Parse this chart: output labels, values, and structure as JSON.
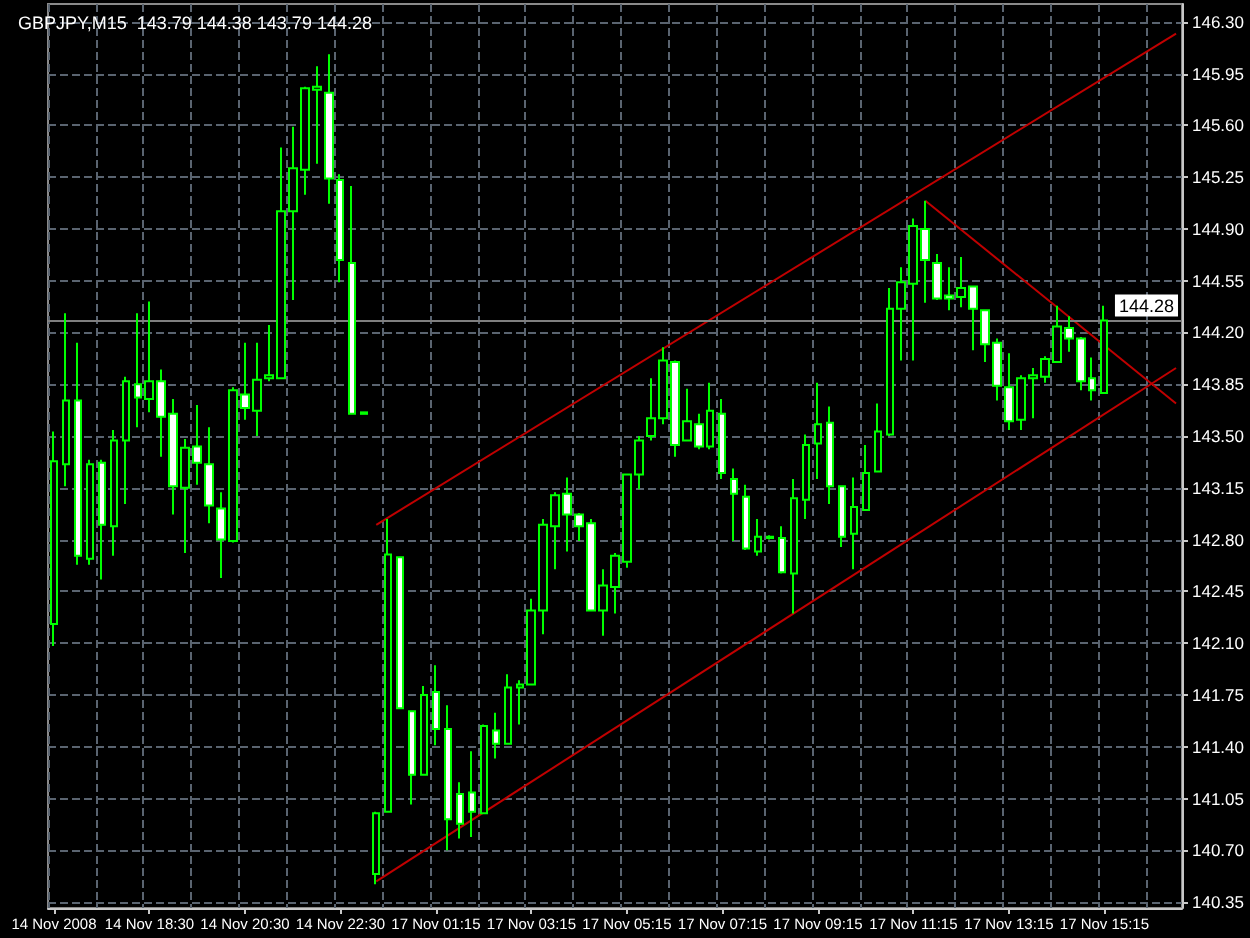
{
  "chart_data": {
    "type": "candlestick",
    "title": "GBPJPY,M15  143.79 144.38 143.79 144.28",
    "categories": [
      "14 Nov 2008",
      null,
      null,
      null,
      null,
      null,
      null,
      null,
      "14 Nov 18:30",
      null,
      null,
      null,
      null,
      null,
      null,
      null,
      "14 Nov 20:30",
      null,
      null,
      null,
      null,
      null,
      null,
      null,
      "14 Nov 22:30",
      null,
      null,
      null,
      null,
      null,
      null,
      null,
      "17 Nov 01:15",
      null,
      null,
      null,
      null,
      null,
      null,
      null,
      "17 Nov 03:15",
      null,
      null,
      null,
      null,
      null,
      null,
      null,
      "17 Nov 05:15",
      null,
      null,
      null,
      null,
      null,
      null,
      null,
      "17 Nov 07:15",
      null,
      null,
      null,
      null,
      null,
      null,
      null,
      "17 Nov 09:15",
      null,
      null,
      null,
      null,
      null,
      null,
      null,
      "17 Nov 11:15",
      null,
      null,
      null,
      null,
      null,
      null,
      null,
      "17 Nov 13:15",
      null,
      null,
      null,
      null,
      null,
      null,
      null,
      "17 Nov 15:15",
      null,
      null,
      null,
      null,
      null,
      null
    ],
    "ylim": [
      140.31,
      146.42
    ],
    "yticks": [
      {
        "value": 140.35,
        "label": "140.35"
      },
      {
        "value": 140.7,
        "label": "140.70"
      },
      {
        "value": 141.05,
        "label": "141.05"
      },
      {
        "value": 141.4,
        "label": "141.40"
      },
      {
        "value": 141.75,
        "label": "141.75"
      },
      {
        "value": 142.1,
        "label": "142.10"
      },
      {
        "value": 142.45,
        "label": "142.45"
      },
      {
        "value": 142.8,
        "label": "142.80"
      },
      {
        "value": 143.15,
        "label": "143.15"
      },
      {
        "value": 143.5,
        "label": "143.50"
      },
      {
        "value": 143.85,
        "label": "143.85"
      },
      {
        "value": 144.2,
        "label": "144.20"
      },
      {
        "value": 144.55,
        "label": "144.55"
      },
      {
        "value": 144.9,
        "label": "144.90"
      },
      {
        "value": 145.25,
        "label": "145.25"
      },
      {
        "value": 145.6,
        "label": "145.60"
      },
      {
        "value": 145.95,
        "label": "145.95"
      },
      {
        "value": 146.3,
        "label": "146.30"
      }
    ],
    "grid": true,
    "ref_lines": [
      {
        "axis": "y",
        "value": 144.28,
        "label": "144.28",
        "color": "#7f7f7f"
      }
    ],
    "color": "#00ff00",
    "colors": [
      "#000000",
      "#000000",
      "#ffffff",
      "#000000",
      "#ffffff",
      "#000000",
      "#000000",
      "#ffffff",
      "#000000",
      "#ffffff",
      "#ffffff",
      "#000000",
      "#ffffff",
      "#ffffff",
      "#ffffff",
      "#000000",
      "#ffffff",
      "#000000",
      "#000000",
      "#000000",
      "#000000",
      "#000000",
      "#000000",
      "#ffffff",
      "#ffffff",
      "#ffffff",
      "#ffffff",
      "#000000",
      "#000000",
      "#ffffff",
      "#ffffff",
      "#000000",
      "#ffffff",
      "#ffffff",
      "#ffffff",
      "#ffffff",
      "#000000",
      "#ffffff",
      "#000000",
      "#000000",
      "#000000",
      "#000000",
      "#000000",
      "#ffffff",
      "#ffffff",
      "#ffffff",
      "#000000",
      "#000000",
      "#000000",
      "#000000",
      "#000000",
      "#000000",
      "#ffffff",
      "#000000",
      "#ffffff",
      "#000000",
      "#ffffff",
      "#ffffff",
      "#ffffff",
      "#000000",
      "#000000",
      "#ffffff",
      "#000000",
      "#000000",
      "#000000",
      "#ffffff",
      "#ffffff",
      "#000000",
      "#000000",
      "#000000",
      "#000000",
      "#000000",
      "#000000",
      "#ffffff",
      "#ffffff",
      "#ffffff",
      "#000000",
      "#ffffff",
      "#ffffff",
      "#ffffff",
      "#ffffff",
      "#000000",
      "#000000",
      "#000000",
      "#000000",
      "#ffffff",
      "#ffffff",
      "#ffffff",
      "#000000",
      null,
      null,
      null,
      null,
      null,
      null
    ],
    "ohlc": [
      [
        142.23,
        143.53,
        142.08,
        143.33
      ],
      [
        143.31,
        144.33,
        143.16,
        143.74
      ],
      [
        143.74,
        144.13,
        142.63,
        142.69
      ],
      [
        142.67,
        143.34,
        142.63,
        143.31
      ],
      [
        143.32,
        143.34,
        142.53,
        142.9
      ],
      [
        142.89,
        143.54,
        142.69,
        143.47
      ],
      [
        143.47,
        143.9,
        143.04,
        143.87
      ],
      [
        143.85,
        144.33,
        143.56,
        143.76
      ],
      [
        143.75,
        144.41,
        143.66,
        143.87
      ],
      [
        143.87,
        143.95,
        143.36,
        143.63
      ],
      [
        143.65,
        143.75,
        142.97,
        143.16
      ],
      [
        143.15,
        143.48,
        142.71,
        143.42
      ],
      [
        143.43,
        143.71,
        143.17,
        143.32
      ],
      [
        143.31,
        143.56,
        142.91,
        143.03
      ],
      [
        143.01,
        143.12,
        142.54,
        142.8
      ],
      [
        142.79,
        143.83,
        142.78,
        143.81
      ],
      [
        143.78,
        144.13,
        143.61,
        143.69
      ],
      [
        143.67,
        144.13,
        143.5,
        143.88
      ],
      [
        143.89,
        144.25,
        143.87,
        143.91
      ],
      [
        143.89,
        145.45,
        143.89,
        145.02
      ],
      [
        145.02,
        145.59,
        144.42,
        145.31
      ],
      [
        145.3,
        145.86,
        145.13,
        145.85
      ],
      [
        145.84,
        146.0,
        145.34,
        145.86
      ],
      [
        145.82,
        146.08,
        145.07,
        145.24
      ],
      [
        145.23,
        145.27,
        144.54,
        144.69
      ],
      [
        144.67,
        145.19,
        143.65,
        143.65
      ],
      [
        143.66,
        143.66,
        143.65,
        143.65
      ],
      [
        140.54,
        140.96,
        140.47,
        140.95
      ],
      [
        140.96,
        142.94,
        140.96,
        142.7
      ],
      [
        142.68,
        142.68,
        141.66,
        141.66
      ],
      [
        141.64,
        141.64,
        141.01,
        141.21
      ],
      [
        141.21,
        141.81,
        141.21,
        141.75
      ],
      [
        141.77,
        141.95,
        141.41,
        141.52
      ],
      [
        141.52,
        141.68,
        140.7,
        140.91
      ],
      [
        141.08,
        141.16,
        140.78,
        140.88
      ],
      [
        141.09,
        141.37,
        140.79,
        140.96
      ],
      [
        140.95,
        141.55,
        140.95,
        141.54
      ],
      [
        141.51,
        141.63,
        141.32,
        141.42
      ],
      [
        141.42,
        141.89,
        141.42,
        141.8
      ],
      [
        141.8,
        141.85,
        141.55,
        141.82
      ],
      [
        141.82,
        142.4,
        141.82,
        142.32
      ],
      [
        142.32,
        142.94,
        142.16,
        142.9
      ],
      [
        142.89,
        143.12,
        142.6,
        143.1
      ],
      [
        143.11,
        143.22,
        142.72,
        142.97
      ],
      [
        142.97,
        142.98,
        142.79,
        142.89
      ],
      [
        142.91,
        142.94,
        142.32,
        142.32
      ],
      [
        142.32,
        142.6,
        142.15,
        142.49
      ],
      [
        142.48,
        142.71,
        142.3,
        142.69
      ],
      [
        142.65,
        143.24,
        142.61,
        143.24
      ],
      [
        143.24,
        143.5,
        143.14,
        143.47
      ],
      [
        143.5,
        143.89,
        143.47,
        143.62
      ],
      [
        143.62,
        144.1,
        143.58,
        144.01
      ],
      [
        144.0,
        144.01,
        143.36,
        143.44
      ],
      [
        143.47,
        143.82,
        143.47,
        143.6
      ],
      [
        143.58,
        143.65,
        143.41,
        143.43
      ],
      [
        143.43,
        143.86,
        143.41,
        143.67
      ],
      [
        143.65,
        143.75,
        143.21,
        143.25
      ],
      [
        143.21,
        143.28,
        142.79,
        143.11
      ],
      [
        143.09,
        143.17,
        142.73,
        142.74
      ],
      [
        142.72,
        142.94,
        142.69,
        142.82
      ],
      [
        142.81,
        142.83,
        142.8,
        142.82
      ],
      [
        142.81,
        142.89,
        142.57,
        142.58
      ],
      [
        142.57,
        143.21,
        142.3,
        143.08
      ],
      [
        143.07,
        143.51,
        142.94,
        143.44
      ],
      [
        143.45,
        143.86,
        143.21,
        143.58
      ],
      [
        143.59,
        143.7,
        143.04,
        143.16
      ],
      [
        143.16,
        143.16,
        142.75,
        142.82
      ],
      [
        142.84,
        143.22,
        142.6,
        143.02
      ],
      [
        143.0,
        143.44,
        143.0,
        143.25
      ],
      [
        143.26,
        143.72,
        143.26,
        143.53
      ],
      [
        143.51,
        144.5,
        143.5,
        144.36
      ],
      [
        144.36,
        144.64,
        144.01,
        144.54
      ],
      [
        144.53,
        144.97,
        144.01,
        144.92
      ],
      [
        144.9,
        145.09,
        144.4,
        144.69
      ],
      [
        144.67,
        144.73,
        144.42,
        144.43
      ],
      [
        144.45,
        144.64,
        144.35,
        144.43
      ],
      [
        144.44,
        144.71,
        144.37,
        144.5
      ],
      [
        144.51,
        144.51,
        144.08,
        144.36
      ],
      [
        144.35,
        144.35,
        144.0,
        144.12
      ],
      [
        144.13,
        144.16,
        143.74,
        143.84
      ],
      [
        143.83,
        144.06,
        143.54,
        143.6
      ],
      [
        143.61,
        143.91,
        143.54,
        143.89
      ],
      [
        143.89,
        143.96,
        143.62,
        143.91
      ],
      [
        143.9,
        144.04,
        143.86,
        144.02
      ],
      [
        144.0,
        144.38,
        144.0,
        144.24
      ],
      [
        144.23,
        144.31,
        144.07,
        144.16
      ],
      [
        144.16,
        144.17,
        143.81,
        143.87
      ],
      [
        143.89,
        144.03,
        143.74,
        143.81
      ],
      [
        143.79,
        144.38,
        143.79,
        144.28
      ],
      null,
      null,
      null,
      null,
      null,
      null
    ],
    "series": [
      {
        "type": "line",
        "color": "#c00000",
        "values": [
          null,
          null,
          null,
          null,
          null,
          null,
          null,
          null,
          null,
          null,
          null,
          null,
          null,
          null,
          null,
          null,
          null,
          null,
          null,
          null,
          null,
          null,
          null,
          null,
          null,
          null,
          null,
          142.9,
          null,
          null,
          null,
          null,
          null,
          null,
          null,
          null,
          null,
          null,
          null,
          null,
          null,
          null,
          null,
          null,
          null,
          null,
          null,
          null,
          null,
          null,
          null,
          null,
          null,
          null,
          null,
          null,
          null,
          null,
          null,
          null,
          null,
          null,
          null,
          null,
          null,
          null,
          null,
          null,
          null,
          null,
          null,
          null,
          null,
          null,
          null,
          null,
          null,
          null,
          null,
          null,
          null,
          null,
          null,
          null,
          null,
          null,
          null,
          null,
          null,
          null,
          null,
          null,
          null,
          null,
          146.22
        ]
      },
      {
        "type": "line",
        "color": "#c00000",
        "values": [
          null,
          null,
          null,
          null,
          null,
          null,
          null,
          null,
          null,
          null,
          null,
          null,
          null,
          null,
          null,
          null,
          null,
          null,
          null,
          null,
          null,
          null,
          null,
          null,
          null,
          null,
          null,
          140.49,
          null,
          null,
          null,
          null,
          null,
          null,
          null,
          null,
          null,
          null,
          null,
          null,
          null,
          null,
          null,
          null,
          null,
          null,
          null,
          null,
          null,
          null,
          null,
          null,
          null,
          null,
          null,
          null,
          null,
          null,
          null,
          null,
          null,
          null,
          null,
          null,
          null,
          null,
          null,
          null,
          null,
          null,
          null,
          null,
          null,
          null,
          null,
          null,
          null,
          null,
          null,
          null,
          null,
          null,
          null,
          null,
          null,
          null,
          null,
          null,
          null,
          null,
          null,
          null,
          null,
          null,
          143.96
        ]
      },
      {
        "type": "line",
        "color": "#c00000",
        "values": [
          null,
          null,
          null,
          null,
          null,
          null,
          null,
          null,
          null,
          null,
          null,
          null,
          null,
          null,
          null,
          null,
          null,
          null,
          null,
          null,
          null,
          null,
          null,
          null,
          null,
          null,
          null,
          null,
          null,
          null,
          null,
          null,
          null,
          null,
          null,
          null,
          null,
          null,
          null,
          null,
          null,
          null,
          null,
          null,
          null,
          null,
          null,
          null,
          null,
          null,
          null,
          null,
          null,
          null,
          null,
          null,
          null,
          null,
          null,
          null,
          null,
          null,
          null,
          null,
          null,
          null,
          null,
          null,
          null,
          null,
          null,
          null,
          null,
          145.09,
          null,
          null,
          null,
          null,
          null,
          null,
          null,
          null,
          null,
          null,
          null,
          null,
          null,
          null,
          null,
          null,
          null,
          null,
          null,
          null,
          143.72
        ]
      }
    ]
  }
}
